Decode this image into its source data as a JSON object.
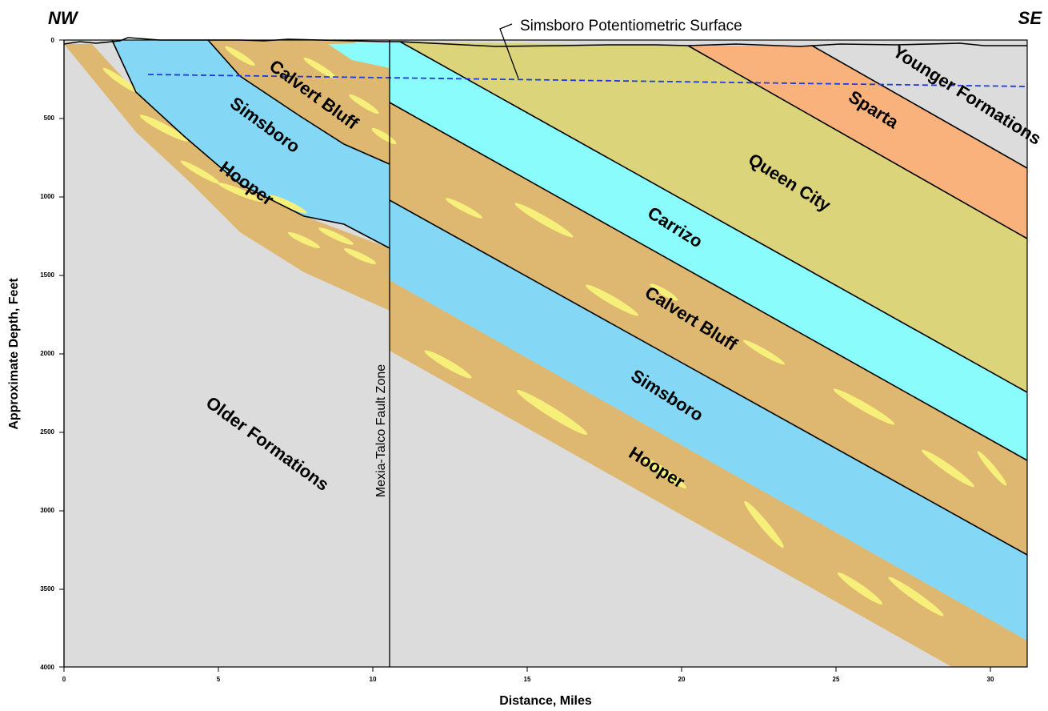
{
  "diagram": {
    "corner_left": "NW",
    "corner_right": "SE",
    "potentiometric_surface_label": "Simsboro Potentiometric Surface",
    "fault_label": "Mexia-Talco Fault Zone",
    "x_axis": {
      "title": "Distance, Miles",
      "ticks": [
        "0",
        "5",
        "10",
        "15",
        "20",
        "25",
        "30"
      ]
    },
    "y_axis": {
      "title": "Approximate Depth, Feet",
      "ticks": [
        "0",
        "500",
        "1000",
        "1500",
        "2000",
        "2500",
        "3000",
        "3500",
        "4000"
      ]
    },
    "layer_labels": {
      "calvert_bluff_nw": "Calvert Bluff",
      "simsboro_nw": "Simsboro",
      "hooper_nw": "Hooper",
      "older_formations": "Older Formations",
      "carrizo": "Carrizo",
      "queen_city": "Queen City",
      "sparta": "Sparta",
      "younger_formations": "Younger Formations",
      "calvert_bluff_se": "Calvert Bluff",
      "simsboro_se": "Simsboro",
      "hooper_se": "Hooper"
    },
    "colors": {
      "older_formations": "#dcdcdc",
      "hooper": "#deb870",
      "calvert_bluff": "#deb870",
      "sand_lens": "#f6f07a",
      "simsboro": "#85d8f5",
      "carrizo": "#8afcfc",
      "queen_city": "#dcd47a",
      "sparta": "#fab27c",
      "younger_formations": "#dcdcdc",
      "potentiometric_surface": "#1e3cdc"
    }
  }
}
